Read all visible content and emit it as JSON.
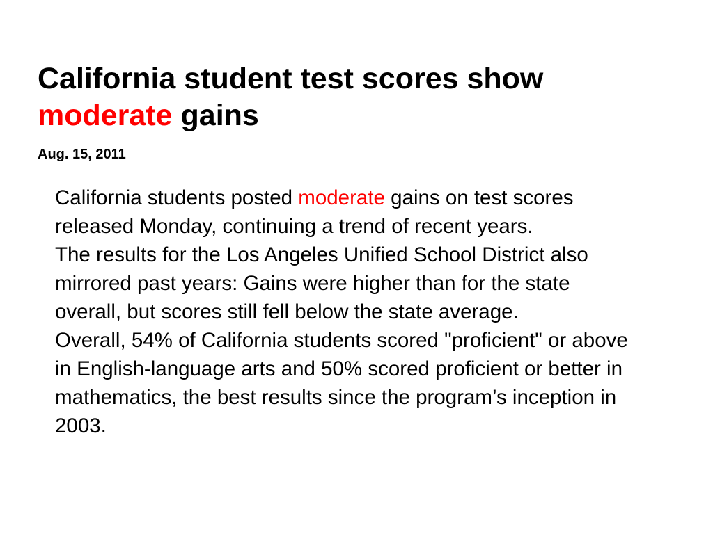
{
  "title": {
    "line1": "California student test scores show",
    "highlight": "moderate",
    "rest": " gains"
  },
  "date": "Aug. 15, 2011",
  "paragraphs": {
    "p1_before": "California students posted ",
    "p1_highlight": "moderate",
    "p1_after": " gains on test scores released Monday, continuing a trend of recent years.",
    "p2": "The results for the Los Angeles Unified School District also mirrored past years: Gains were higher than for the state overall, but scores still fell below the state average.",
    "p3": "Overall, 54% of California students scored \"proficient\" or above in English-language arts and 50% scored proficient or better in mathematics, the best results since the program’s inception in 2003."
  },
  "colors": {
    "highlight": "#ff0000",
    "text": "#000000",
    "background": "#ffffff"
  }
}
